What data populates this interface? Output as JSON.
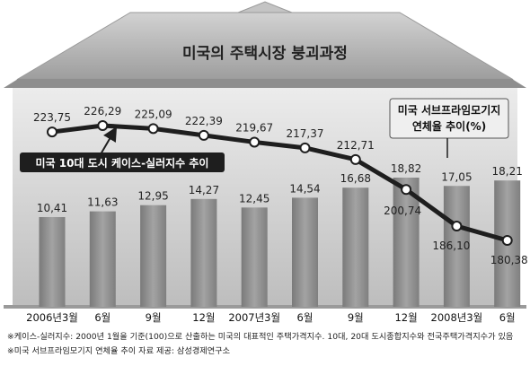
{
  "title": "미국의 주택시장 붕괴과정",
  "chart_data": {
    "type": "bar",
    "categories": [
      "2006년3월",
      "6월",
      "9월",
      "12월",
      "2007년3월",
      "6월",
      "9월",
      "12월",
      "2008년3월",
      "6월"
    ],
    "series": [
      {
        "name": "미국 서브프라임모기지 연체율 추이(%)",
        "type": "bar",
        "values": [
          10.41,
          11.63,
          12.95,
          14.27,
          12.45,
          14.54,
          16.68,
          18.82,
          17.05,
          18.21
        ],
        "labels": [
          "10,41",
          "11,63",
          "12,95",
          "14,27",
          "12,45",
          "14,54",
          "16,68",
          "18,82",
          "17,05",
          "18,21"
        ]
      },
      {
        "name": "미국 10대 도시 케이스-실러지수 추이",
        "type": "line",
        "values": [
          223.75,
          226.29,
          225.09,
          222.39,
          219.67,
          217.37,
          212.71,
          200.74,
          186.1,
          180.38
        ],
        "labels": [
          "223,75",
          "226,29",
          "225,09",
          "222,39",
          "219,67",
          "217,37",
          "212,71",
          "200,74",
          "186,10",
          "180,38"
        ]
      }
    ],
    "grid": false,
    "legend": "callouts"
  },
  "notes": [
    "※케이스-실러지수: 2000년 1월을 기준(100)으로 산출하는 미국의 대표적인 주택가격지수. 10대, 20대 도시종합지수와 전국주택가격지수가 있음",
    "※미국 서브프라임모기지 연체율 추이 자료 제공: 삼성경제연구소"
  ],
  "colors": {
    "bar": "#8f8f8f",
    "roof": "#b9b9b9",
    "panel": "#d6d6d6",
    "callout_dark": "#1e1e1e",
    "callout_light": "#efefef"
  }
}
